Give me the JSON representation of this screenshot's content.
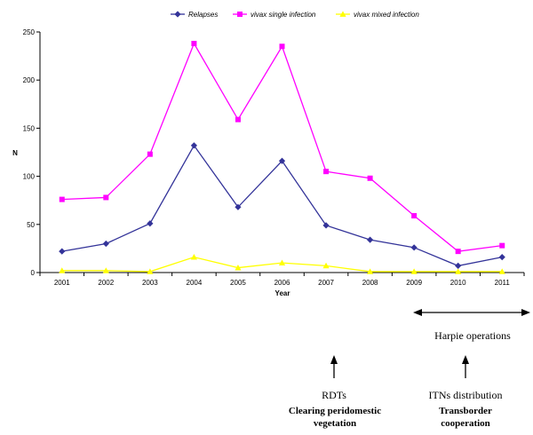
{
  "chart_data": {
    "type": "line",
    "title": "",
    "xlabel": "Year",
    "ylabel": "N",
    "ylim": [
      0,
      250
    ],
    "yticks": [
      0,
      50,
      100,
      150,
      200,
      250
    ],
    "categories": [
      "2001",
      "2002",
      "2003",
      "2004",
      "2005",
      "2006",
      "2007",
      "2008",
      "2009",
      "2010",
      "2011"
    ],
    "legend_position": "top",
    "grid": false,
    "series": [
      {
        "name": "Relapses",
        "color": "#333399",
        "marker": "diamond",
        "values": [
          22,
          30,
          51,
          132,
          68,
          116,
          49,
          34,
          26,
          7,
          16
        ]
      },
      {
        "name": "vivax single infection",
        "color": "#ff00ff",
        "marker": "square",
        "values": [
          76,
          78,
          123,
          238,
          159,
          235,
          105,
          98,
          59,
          22,
          28
        ]
      },
      {
        "name": "vivax mixed infection",
        "color": "#ffff00",
        "marker": "triangle",
        "values": [
          2,
          2,
          1,
          16,
          5,
          10,
          7,
          1,
          1,
          1,
          1
        ]
      }
    ]
  },
  "annotations": {
    "harpie": "Harpie operations",
    "rdts": "RDTs",
    "clearing": "Clearing peridomestic vegetation",
    "itns": "ITNs distribution",
    "transborder": "Transborder cooperation"
  }
}
